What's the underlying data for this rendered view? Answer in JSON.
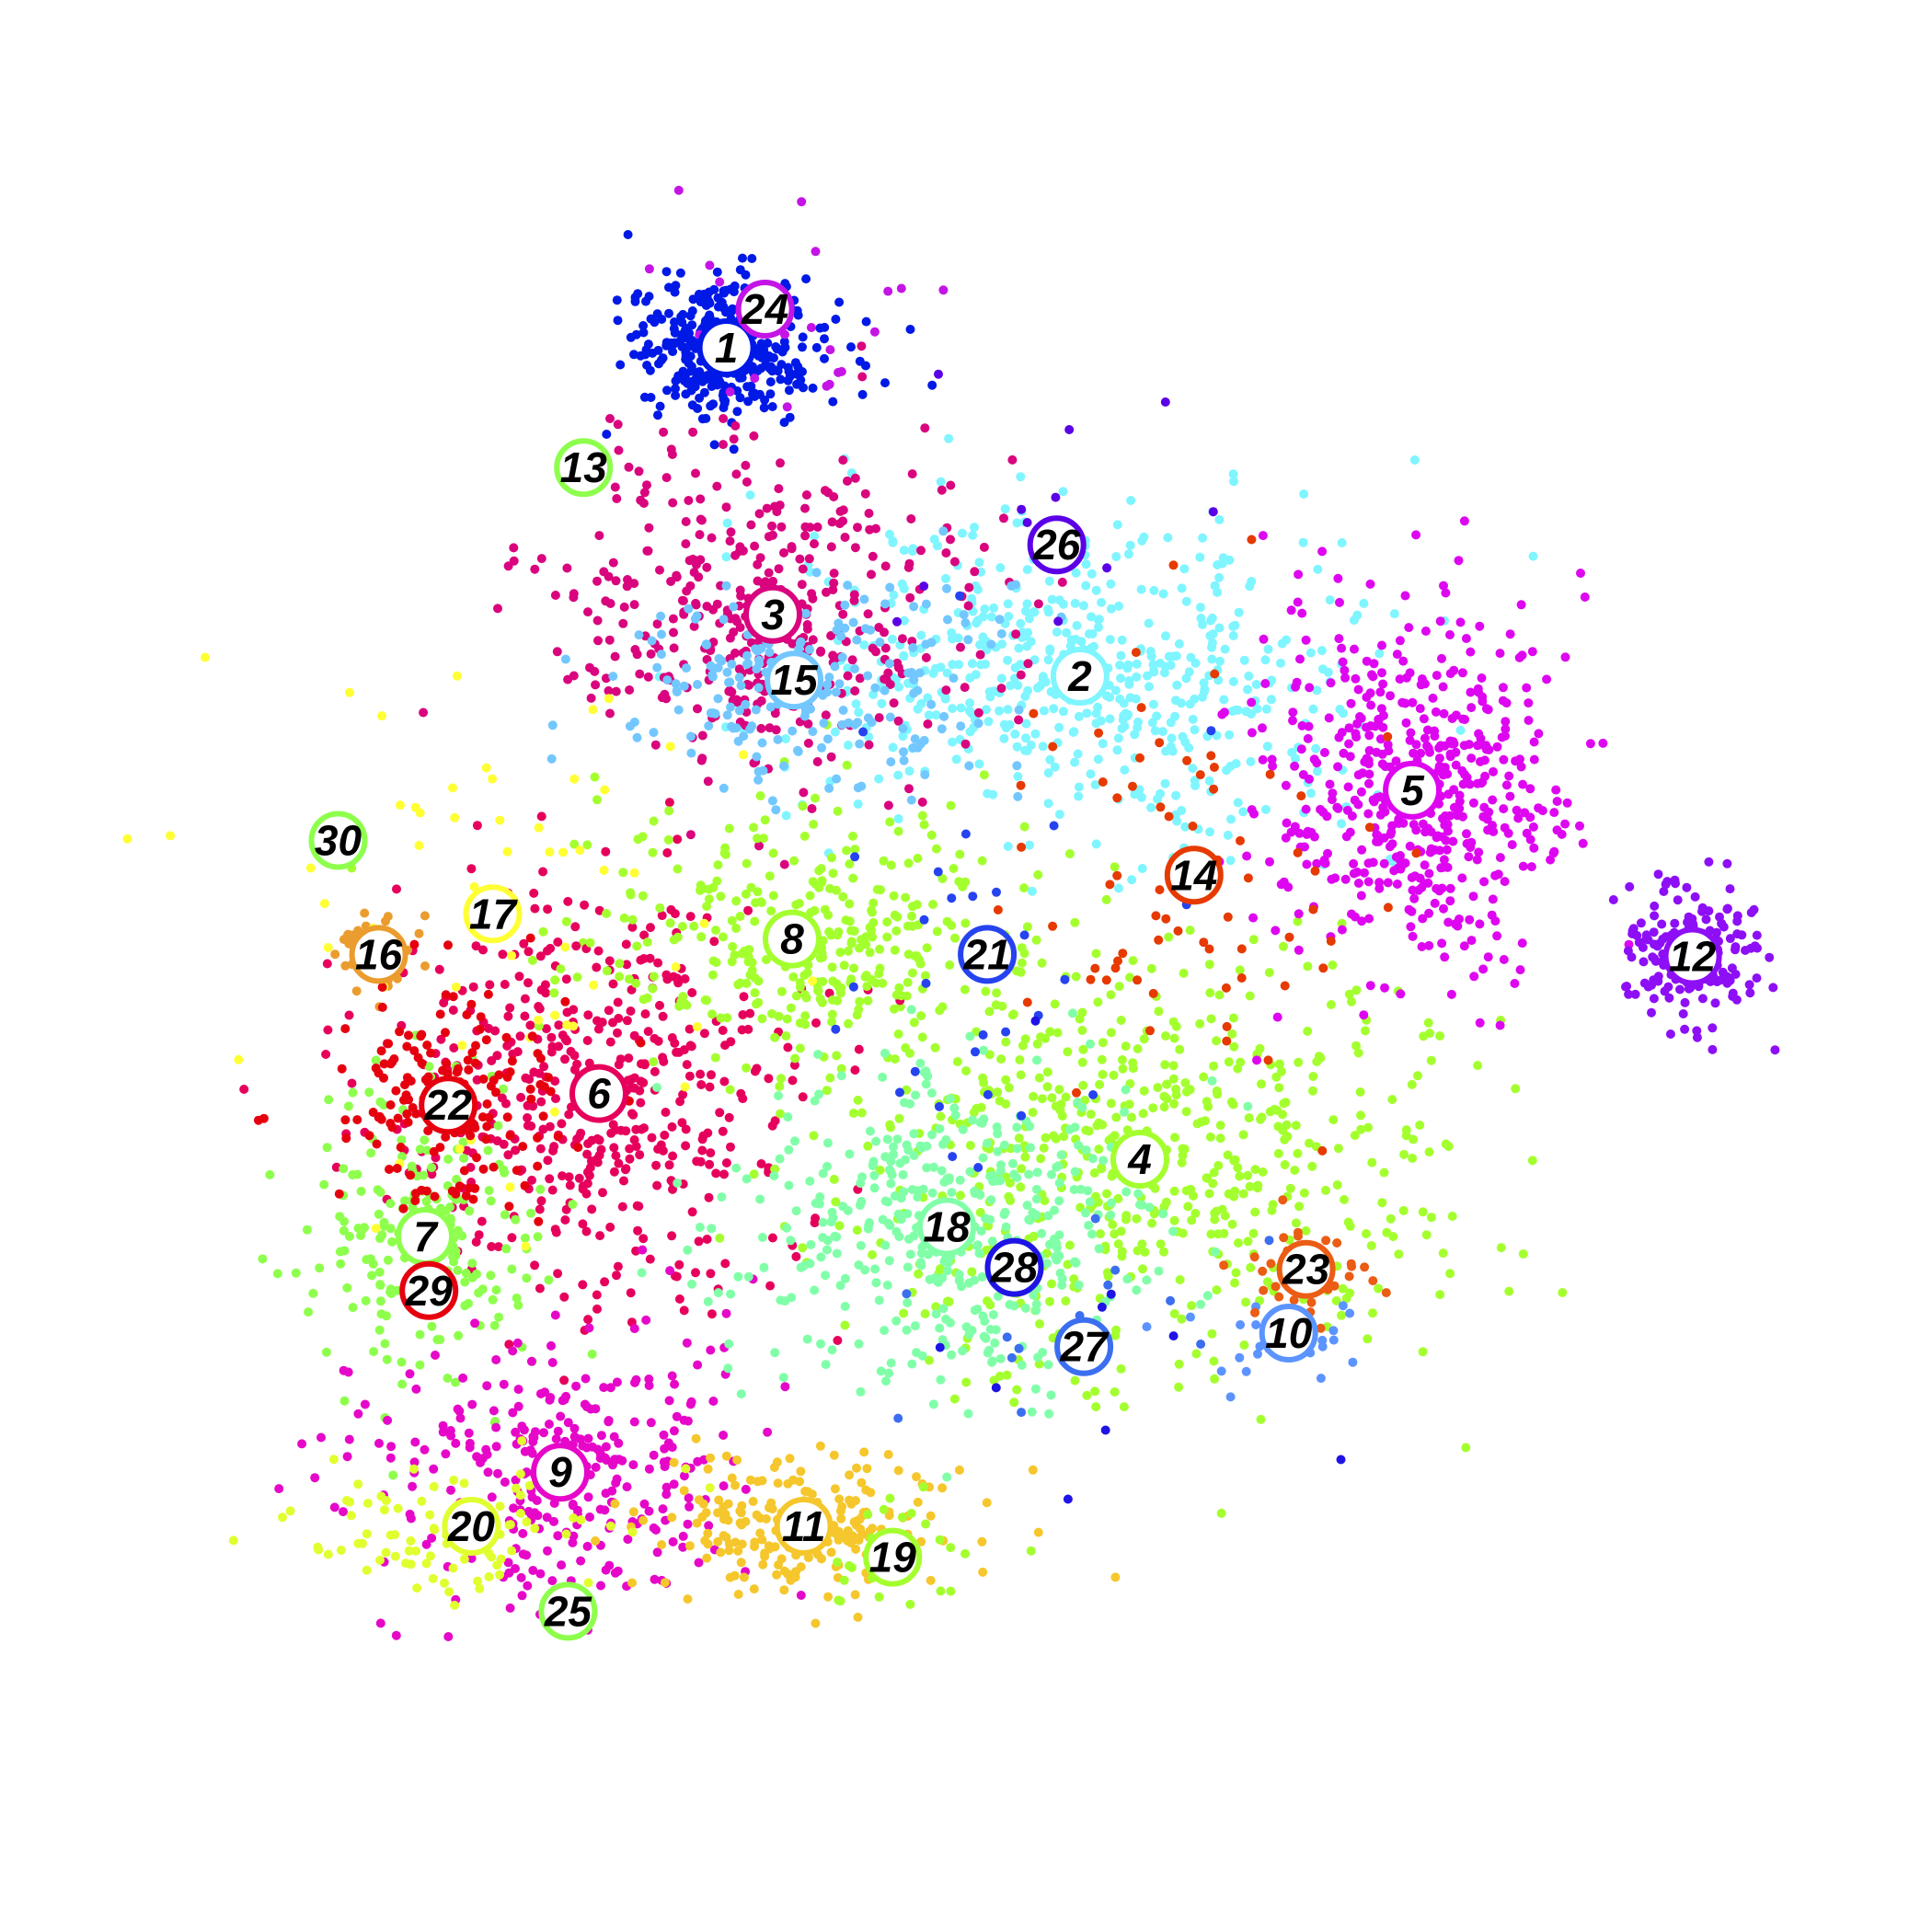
{
  "chart_data": {
    "type": "scatter",
    "title": "",
    "xlabel": "",
    "ylabel": "",
    "xlim": [
      0,
      100
    ],
    "ylim": [
      0,
      100
    ],
    "grid": false,
    "axes_visible": false,
    "legend": "none",
    "point_seed": 1337,
    "clusters": [
      {
        "id": "1",
        "label": "1",
        "x": 37.6,
        "y": 82.0,
        "sx": 2.6,
        "sy": 1.9,
        "n": 380,
        "color": "#0019e6",
        "ring": "#0019e6"
      },
      {
        "id": "2",
        "label": "2",
        "x": 55.9,
        "y": 65.0,
        "sx": 7.5,
        "sy": 4.2,
        "n": 560,
        "color": "#7ff5ff",
        "ring": "#7ff5ff"
      },
      {
        "id": "3",
        "label": "3",
        "x": 40.0,
        "y": 68.2,
        "sx": 5.5,
        "sy": 4.6,
        "n": 420,
        "color": "#d9047e",
        "ring": "#d9047e"
      },
      {
        "id": "4",
        "label": "4",
        "x": 59.0,
        "y": 40.0,
        "sx": 8.0,
        "sy": 5.5,
        "n": 620,
        "color": "#a4ff2e",
        "ring": "#a4ff2e"
      },
      {
        "id": "5",
        "label": "5",
        "x": 73.1,
        "y": 59.1,
        "sx": 4.0,
        "sy": 4.6,
        "n": 520,
        "color": "#de06f0",
        "ring": "#de06f0"
      },
      {
        "id": "6",
        "label": "6",
        "x": 31.0,
        "y": 43.4,
        "sx": 5.2,
        "sy": 5.3,
        "n": 480,
        "color": "#e6005c",
        "ring": "#e6005c"
      },
      {
        "id": "7",
        "label": "7",
        "x": 22.0,
        "y": 36.0,
        "sx": 3.0,
        "sy": 4.0,
        "n": 220,
        "color": "#8dff4c",
        "ring": "#8dff4c"
      },
      {
        "id": "8",
        "label": "8",
        "x": 41.0,
        "y": 51.4,
        "sx": 5.5,
        "sy": 3.4,
        "n": 340,
        "color": "#a4ff2e",
        "ring": "#a4ff2e"
      },
      {
        "id": "9",
        "label": "9",
        "x": 29.0,
        "y": 23.8,
        "sx": 5.0,
        "sy": 3.5,
        "n": 330,
        "color": "#e607c9",
        "ring": "#e607c9"
      },
      {
        "id": "10",
        "label": "10",
        "x": 66.7,
        "y": 31.0,
        "sx": 2.5,
        "sy": 1.5,
        "n": 30,
        "color": "#5c94ff",
        "ring": "#5c94ff"
      },
      {
        "id": "11",
        "label": "11",
        "x": 41.6,
        "y": 21.0,
        "sx": 3.7,
        "sy": 1.9,
        "n": 230,
        "color": "#f5c72c",
        "ring": "#f5c72c"
      },
      {
        "id": "12",
        "label": "12",
        "x": 87.6,
        "y": 50.5,
        "sx": 1.8,
        "sy": 1.8,
        "n": 180,
        "color": "#8d0ff5",
        "ring": "#8d0ff5"
      },
      {
        "id": "13",
        "label": "13",
        "x": 30.2,
        "y": 75.8,
        "sx": 0.0,
        "sy": 0.0,
        "n": 0,
        "color": "#8dff4c",
        "ring": "#8dff4c"
      },
      {
        "id": "14",
        "label": "14",
        "x": 61.8,
        "y": 54.7,
        "sx": 4.5,
        "sy": 5.5,
        "n": 70,
        "color": "#e63a00",
        "ring": "#e63a00"
      },
      {
        "id": "15",
        "label": "15",
        "x": 41.1,
        "y": 64.8,
        "sx": 5.0,
        "sy": 2.8,
        "n": 220,
        "color": "#73c7ff",
        "ring": "#73c7ff"
      },
      {
        "id": "16",
        "label": "16",
        "x": 19.6,
        "y": 50.6,
        "sx": 1.4,
        "sy": 1.2,
        "n": 45,
        "color": "#eb9c2e",
        "ring": "#eb9c2e"
      },
      {
        "id": "17",
        "label": "17",
        "x": 25.5,
        "y": 52.7,
        "sx": 6.0,
        "sy": 9.0,
        "n": 60,
        "color": "#ffff33",
        "ring": "#ffff33"
      },
      {
        "id": "18",
        "label": "18",
        "x": 49.0,
        "y": 36.5,
        "sx": 5.5,
        "sy": 4.2,
        "n": 420,
        "color": "#80ffa8",
        "ring": "#80ffa8"
      },
      {
        "id": "19",
        "label": "19",
        "x": 46.2,
        "y": 19.4,
        "sx": 2.5,
        "sy": 1.6,
        "n": 30,
        "color": "#a4ff2e",
        "ring": "#a4ff2e"
      },
      {
        "id": "20",
        "label": "20",
        "x": 24.4,
        "y": 21.0,
        "sx": 4.0,
        "sy": 1.8,
        "n": 90,
        "color": "#e1ff2e",
        "ring": "#e1ff2e"
      },
      {
        "id": "21",
        "label": "21",
        "x": 51.1,
        "y": 50.6,
        "sx": 6.0,
        "sy": 7.0,
        "n": 30,
        "color": "#2643f0",
        "ring": "#2643f0"
      },
      {
        "id": "22",
        "label": "22",
        "x": 23.2,
        "y": 42.8,
        "sx": 3.0,
        "sy": 2.8,
        "n": 170,
        "color": "#e6000f",
        "ring": "#e6000f"
      },
      {
        "id": "23",
        "label": "23",
        "x": 67.6,
        "y": 34.3,
        "sx": 2.0,
        "sy": 1.5,
        "n": 40,
        "color": "#eb5c14",
        "ring": "#eb5c14"
      },
      {
        "id": "24",
        "label": "24",
        "x": 39.6,
        "y": 84.0,
        "sx": 4.0,
        "sy": 3.5,
        "n": 25,
        "color": "#c414e6",
        "ring": "#c414e6"
      },
      {
        "id": "25",
        "label": "25",
        "x": 29.4,
        "y": 16.6,
        "sx": 0.0,
        "sy": 0.0,
        "n": 0,
        "color": "#8dff4c",
        "ring": "#8dff4c"
      },
      {
        "id": "26",
        "label": "26",
        "x": 54.7,
        "y": 71.8,
        "sx": 8.0,
        "sy": 5.0,
        "n": 12,
        "color": "#5b00e6",
        "ring": "#5b00e6"
      },
      {
        "id": "27",
        "label": "27",
        "x": 56.1,
        "y": 30.3,
        "sx": 6.0,
        "sy": 4.0,
        "n": 14,
        "color": "#3b6ff0",
        "ring": "#3b6ff0"
      },
      {
        "id": "28",
        "label": "28",
        "x": 52.5,
        "y": 34.4,
        "sx": 6.0,
        "sy": 5.0,
        "n": 12,
        "color": "#1f14e6",
        "ring": "#1f14e6"
      },
      {
        "id": "29",
        "label": "29",
        "x": 22.2,
        "y": 33.2,
        "sx": 0.0,
        "sy": 0.0,
        "n": 0,
        "color": "#e6000f",
        "ring": "#e6000f"
      },
      {
        "id": "30",
        "label": "30",
        "x": 17.5,
        "y": 56.5,
        "sx": 0.0,
        "sy": 0.0,
        "n": 0,
        "color": "#8dff4c",
        "ring": "#8dff4c"
      }
    ]
  }
}
